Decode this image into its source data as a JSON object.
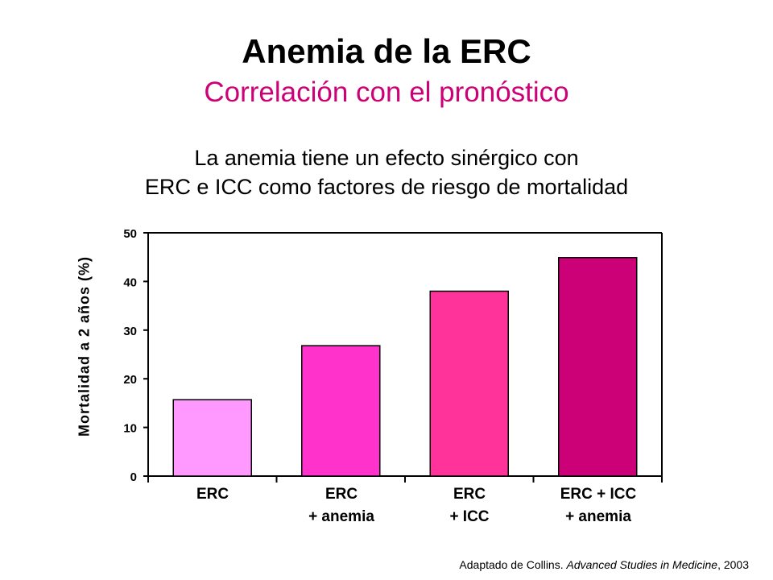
{
  "title": "Anemia de la ERC",
  "subtitle": "Correlación con el pronóstico",
  "description": {
    "line1": "La anemia tiene un efecto sinérgico con",
    "line2": "ERC e ICC como factores de riesgo de mortalidad"
  },
  "source": {
    "prefix": "Adaptado de Collins. ",
    "journal": "Advanced Studies in Medicine",
    "suffix": ", 2003"
  },
  "chart_data": {
    "type": "bar",
    "categories": [
      {
        "line1": "ERC",
        "line2": ""
      },
      {
        "line1": "ERC",
        "line2": "+ anemia"
      },
      {
        "line1": "ERC",
        "line2": "+ ICC"
      },
      {
        "line1": "ERC + ICC",
        "line2": "+ anemia"
      }
    ],
    "values": [
      15.7,
      26.8,
      38.0,
      44.9
    ],
    "colors": [
      "#ff99ff",
      "#ff33cc",
      "#ff3399",
      "#cc0077"
    ],
    "ylabel": "Mortalidad a 2 años (%)",
    "ylim": [
      0,
      50
    ],
    "yticks": [
      0,
      10,
      20,
      30,
      40,
      50
    ],
    "grid": false
  }
}
